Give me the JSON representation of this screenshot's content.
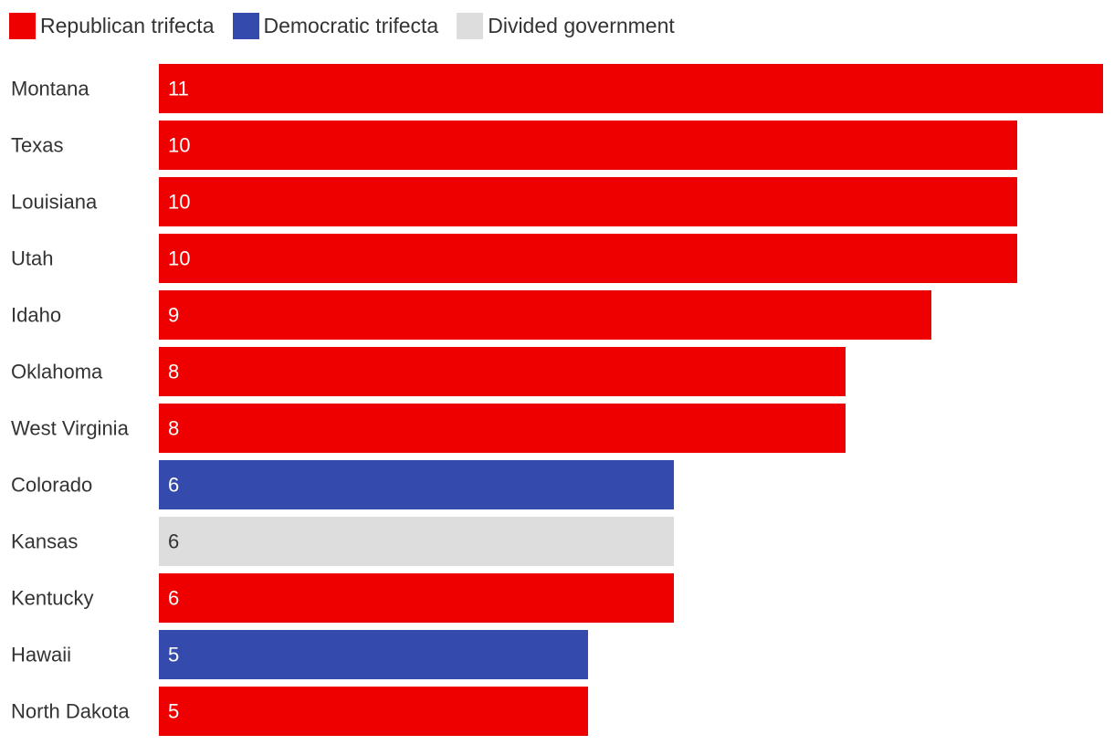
{
  "legend": [
    {
      "label": "Republican trifecta",
      "color": "#ee0000"
    },
    {
      "label": "Democratic trifecta",
      "color": "#344bad"
    },
    {
      "label": "Divided government",
      "color": "#dddddd"
    }
  ],
  "chart_data": {
    "type": "bar",
    "orientation": "horizontal",
    "title": "",
    "xlabel": "",
    "ylabel": "",
    "xlim": [
      0,
      11
    ],
    "grid": false,
    "legend_position": "top-left",
    "categories": [
      "Montana",
      "Texas",
      "Louisiana",
      "Utah",
      "Idaho",
      "Oklahoma",
      "West Virginia",
      "Colorado",
      "Kansas",
      "Kentucky",
      "Hawaii",
      "North Dakota"
    ],
    "values": [
      11,
      10,
      10,
      10,
      9,
      8,
      8,
      6,
      6,
      6,
      5,
      5
    ],
    "groups": [
      "Republican trifecta",
      "Republican trifecta",
      "Republican trifecta",
      "Republican trifecta",
      "Republican trifecta",
      "Republican trifecta",
      "Republican trifecta",
      "Democratic trifecta",
      "Divided government",
      "Republican trifecta",
      "Democratic trifecta",
      "Republican trifecta"
    ]
  }
}
